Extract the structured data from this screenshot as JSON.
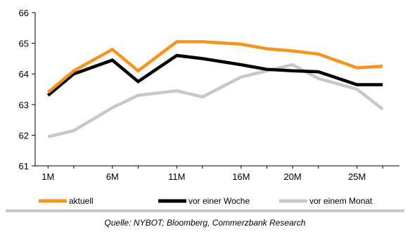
{
  "chart_data": {
    "type": "line",
    "title": "",
    "xlabel": "",
    "ylabel": "",
    "x": [
      1,
      3,
      6,
      8,
      11,
      13,
      16,
      18,
      20,
      22,
      25,
      27
    ],
    "xticks": [
      1,
      6,
      11,
      16,
      20,
      25
    ],
    "xtick_labels": [
      "1M",
      "6M",
      "11M",
      "16M",
      "20M",
      "25M"
    ],
    "ylim": [
      61,
      66
    ],
    "yticks": [
      61,
      62,
      63,
      64,
      65,
      66
    ],
    "ytick_labels": [
      "61",
      "62",
      "63",
      "64",
      "65",
      "66"
    ],
    "grid": false,
    "legend_position": "bottom",
    "series": [
      {
        "name": "aktuell",
        "color": "#f7941d",
        "values": [
          63.4,
          64.1,
          64.8,
          64.1,
          65.05,
          65.05,
          64.97,
          64.82,
          64.75,
          64.65,
          64.2,
          64.25
        ]
      },
      {
        "name": "vor einer Woche",
        "color": "#000000",
        "values": [
          63.3,
          64.0,
          64.45,
          63.75,
          64.6,
          64.5,
          64.3,
          64.15,
          64.1,
          64.07,
          63.65,
          63.65
        ]
      },
      {
        "name": "vor einem Monat",
        "color": "#c8c8c8",
        "values": [
          61.95,
          62.15,
          62.9,
          63.3,
          63.45,
          63.25,
          63.9,
          64.1,
          64.3,
          63.85,
          63.5,
          62.85
        ]
      }
    ]
  },
  "source_text": "Quelle: NYBOT; Bloomberg, Commerzbank Research"
}
